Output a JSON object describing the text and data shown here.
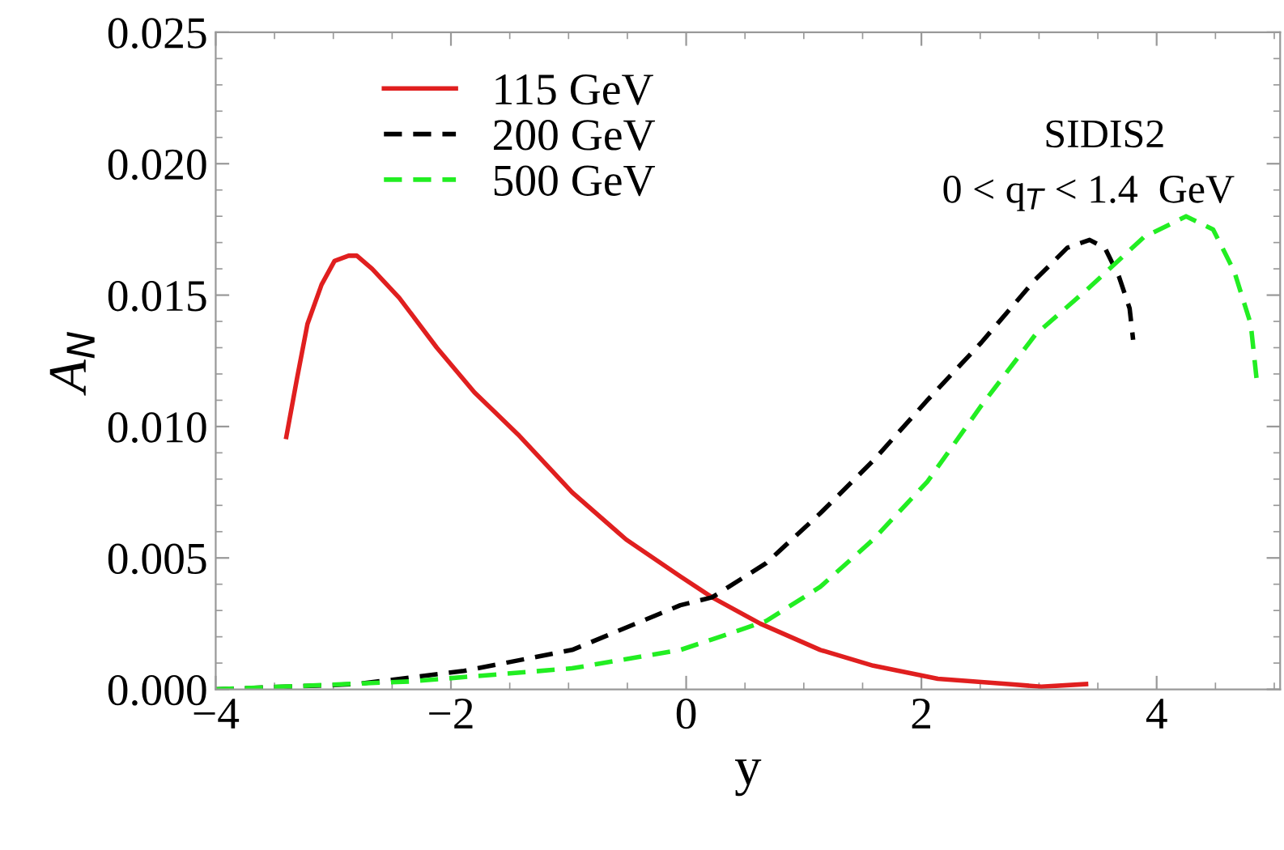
{
  "chart_data": {
    "type": "line",
    "xlabel": "y",
    "ylabel": "A$_{N}$",
    "xlim": [
      -4,
      5.05
    ],
    "ylim": [
      0,
      0.025
    ],
    "xticks": [
      {
        "value": -4,
        "label": "−4"
      },
      {
        "value": -2,
        "label": "−2"
      },
      0,
      2,
      4
    ],
    "yticks": [
      {
        "value": 0,
        "label": "0.000"
      },
      0.005,
      {
        "value": 0.01,
        "label": "0.010"
      },
      0.015,
      {
        "value": 0.02,
        "label": "0.020"
      },
      0.025
    ],
    "grid": false,
    "legend": "top left",
    "marker": "none",
    "annotations": [
      "SIDIS2",
      "0 < q$_{T}$ < 1.4  GeV"
    ],
    "series": [
      {
        "name": "115 GeV",
        "color": "#e01f1f",
        "line_style": "solid",
        "x": [
          -3.4,
          -3.31,
          -3.22,
          -3.1,
          -2.99,
          -2.87,
          -2.8,
          -2.67,
          -2.44,
          -2.12,
          -1.8,
          -1.43,
          -0.97,
          -0.51,
          -0.05,
          0.22,
          0.63,
          1.14,
          1.59,
          2.14,
          2.74,
          3.02,
          3.4
        ],
        "values": [
          0.0096,
          0.0118,
          0.0139,
          0.0154,
          0.0163,
          0.0165,
          0.0165,
          0.016,
          0.0149,
          0.013,
          0.0113,
          0.0097,
          0.0075,
          0.0057,
          0.0043,
          0.0035,
          0.0025,
          0.0015,
          0.0009,
          0.0004,
          0.0002,
          0.0001,
          0.0002
        ]
      },
      {
        "name": "200 GeV",
        "color": "#000000",
        "line_style": "dashed",
        "x": [
          -4,
          -2.8,
          -1.89,
          -0.97,
          -0.05,
          0.22,
          0.68,
          1.14,
          1.59,
          2.05,
          2.51,
          2.97,
          3.24,
          3.43,
          3.56,
          3.68,
          3.77,
          3.8
        ],
        "values": [
          0.0,
          0.0002,
          0.0007,
          0.0015,
          0.0032,
          0.0035,
          0.0048,
          0.0067,
          0.0087,
          0.011,
          0.0132,
          0.0156,
          0.0168,
          0.0171,
          0.0168,
          0.0157,
          0.0145,
          0.0133
        ]
      },
      {
        "name": "500 GeV",
        "color": "#22ee22",
        "line_style": "dashed",
        "x": [
          -4,
          -2.35,
          -0.97,
          -0.05,
          0.22,
          0.68,
          1.14,
          1.59,
          2.05,
          2.51,
          2.97,
          3.43,
          3.89,
          4.25,
          4.48,
          4.66,
          4.8,
          4.85
        ],
        "values": [
          0.0,
          0.0003,
          0.0008,
          0.0015,
          0.0019,
          0.0026,
          0.0039,
          0.0057,
          0.0079,
          0.0108,
          0.0135,
          0.0153,
          0.0172,
          0.018,
          0.0175,
          0.0159,
          0.0139,
          0.0118
        ]
      }
    ]
  }
}
